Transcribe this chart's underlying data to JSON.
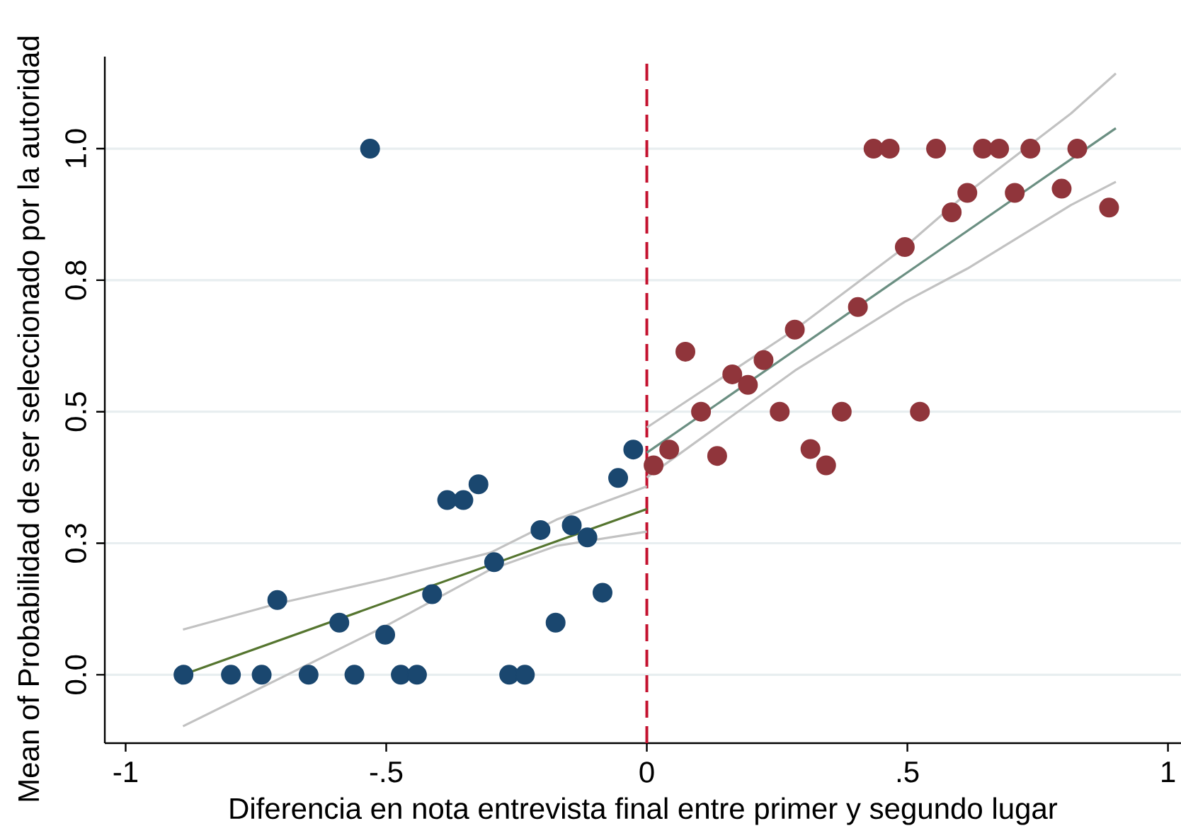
{
  "chart_data": {
    "type": "scatter",
    "xlabel": "Diferencia en nota entrevista final entre primer y segundo lugar",
    "ylabel": "Mean of Probabilidad de ser seleccionado por la autoridad",
    "xlim": [
      -1.04,
      1.025
    ],
    "ylim": [
      -0.13,
      1.175
    ],
    "xticks": [
      -1,
      {
        "value": -0.5,
        "label": "-.5"
      },
      0,
      {
        "value": 0.5,
        "label": ".5"
      },
      1
    ],
    "yticks": [
      {
        "value": 0,
        "label": "0.0"
      },
      {
        "value": 0.25,
        "label": "0.3"
      },
      {
        "value": 0.5,
        "label": "0.5"
      },
      {
        "value": 0.75,
        "label": "0.8"
      },
      {
        "value": 1,
        "label": "1.0"
      }
    ],
    "grid": "y",
    "marker": "circle",
    "series": [
      {
        "color": "#1a476f",
        "x": [
          -0.889,
          -0.798,
          -0.739,
          -0.709,
          -0.649,
          -0.59,
          -0.561,
          -0.531,
          -0.502,
          -0.472,
          -0.441,
          -0.412,
          -0.383,
          -0.352,
          -0.323,
          -0.293,
          -0.264,
          -0.234,
          -0.204,
          -0.175,
          -0.144,
          -0.114,
          -0.085,
          -0.055,
          -0.026
        ],
        "values": [
          0,
          0,
          0,
          0.142,
          0,
          0.099,
          0,
          1,
          0.076,
          0,
          0,
          0.153,
          0.332,
          0.332,
          0.362,
          0.214,
          0,
          0,
          0.275,
          0.099,
          0.284,
          0.261,
          0.156,
          0.374,
          0.428
        ]
      },
      {
        "color": "#90353b",
        "x": [
          0.013,
          0.043,
          0.074,
          0.104,
          0.135,
          0.164,
          0.194,
          0.224,
          0.255,
          0.284,
          0.314,
          0.344,
          0.374,
          0.405,
          0.435,
          0.466,
          0.495,
          0.524,
          0.555,
          0.585,
          0.615,
          0.645,
          0.676,
          0.706,
          0.736,
          0.796,
          0.826,
          0.887
        ],
        "values": [
          0.398,
          0.428,
          0.614,
          0.5,
          0.416,
          0.571,
          0.551,
          0.598,
          0.5,
          0.656,
          0.429,
          0.398,
          0.5,
          0.699,
          1,
          1,
          0.813,
          0.5,
          1,
          0.879,
          0.916,
          1,
          1,
          0.916,
          1,
          0.924,
          1,
          0.888
        ]
      },
      {
        "type": "line",
        "color": "#c2c2c2",
        "marker": "none",
        "x": [
          -0.89,
          -0.709,
          -0.5,
          -0.3,
          -0.173,
          0
        ],
        "values": [
          0.086,
          0.135,
          0.182,
          0.232,
          0.295,
          0.358
        ]
      },
      {
        "type": "line",
        "color": "#c2c2c2",
        "marker": "none",
        "x": [
          -0.89,
          -0.5,
          -0.3,
          -0.173,
          0
        ],
        "values": [
          -0.098,
          0.093,
          0.2,
          0.245,
          0.272
        ]
      },
      {
        "type": "line",
        "color": "#55752f",
        "marker": "none",
        "x": [
          -0.89,
          0
        ],
        "values": [
          0,
          0.315
        ]
      },
      {
        "type": "line",
        "color": "#c2c2c2",
        "marker": "none",
        "x": [
          0,
          0.284,
          0.495,
          0.615,
          0.814,
          0.9
        ],
        "values": [
          0.47,
          0.656,
          0.813,
          0.916,
          1.067,
          1.143
        ]
      },
      {
        "type": "line",
        "color": "#c2c2c2",
        "marker": "none",
        "x": [
          0,
          0.284,
          0.495,
          0.615,
          0.814,
          0.9
        ],
        "values": [
          0.375,
          0.578,
          0.709,
          0.772,
          0.893,
          0.937
        ]
      },
      {
        "type": "line",
        "color": "#6b8f82",
        "marker": "none",
        "x": [
          0,
          0.9
        ],
        "values": [
          0.422,
          1.039
        ]
      }
    ],
    "ref_lines": [
      {
        "axis": "x",
        "value": 0,
        "color": "#c4122f",
        "line_style": "dashed"
      }
    ]
  }
}
